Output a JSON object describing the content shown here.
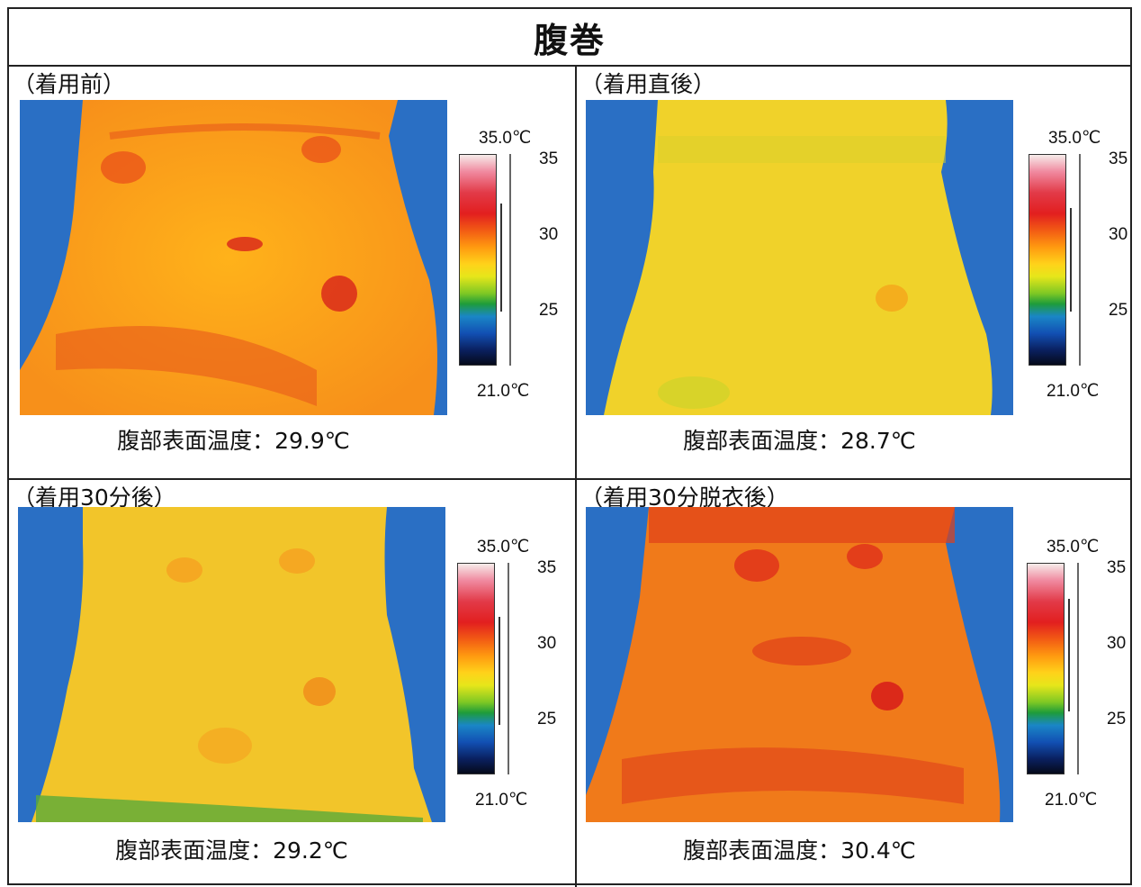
{
  "title": "腹巻",
  "scale": {
    "max_label": "35.0℃",
    "min_label": "21.0℃",
    "ticks": [
      "35",
      "30",
      "25"
    ]
  },
  "panels": [
    {
      "label": "（着用前）",
      "caption": "腹部表面温度：29.9℃",
      "palette": "warm",
      "temperature_c": 29.9
    },
    {
      "label": "（着用直後）",
      "caption": "腹部表面温度：28.7℃",
      "palette": "cool",
      "temperature_c": 28.7
    },
    {
      "label": "（着用30分後）",
      "caption": "腹部表面温度：29.2℃",
      "palette": "mid",
      "temperature_c": 29.2
    },
    {
      "label": "（着用30分脱衣後）",
      "caption": "腹部表面温度：30.4℃",
      "palette": "hot",
      "temperature_c": 30.4
    }
  ]
}
